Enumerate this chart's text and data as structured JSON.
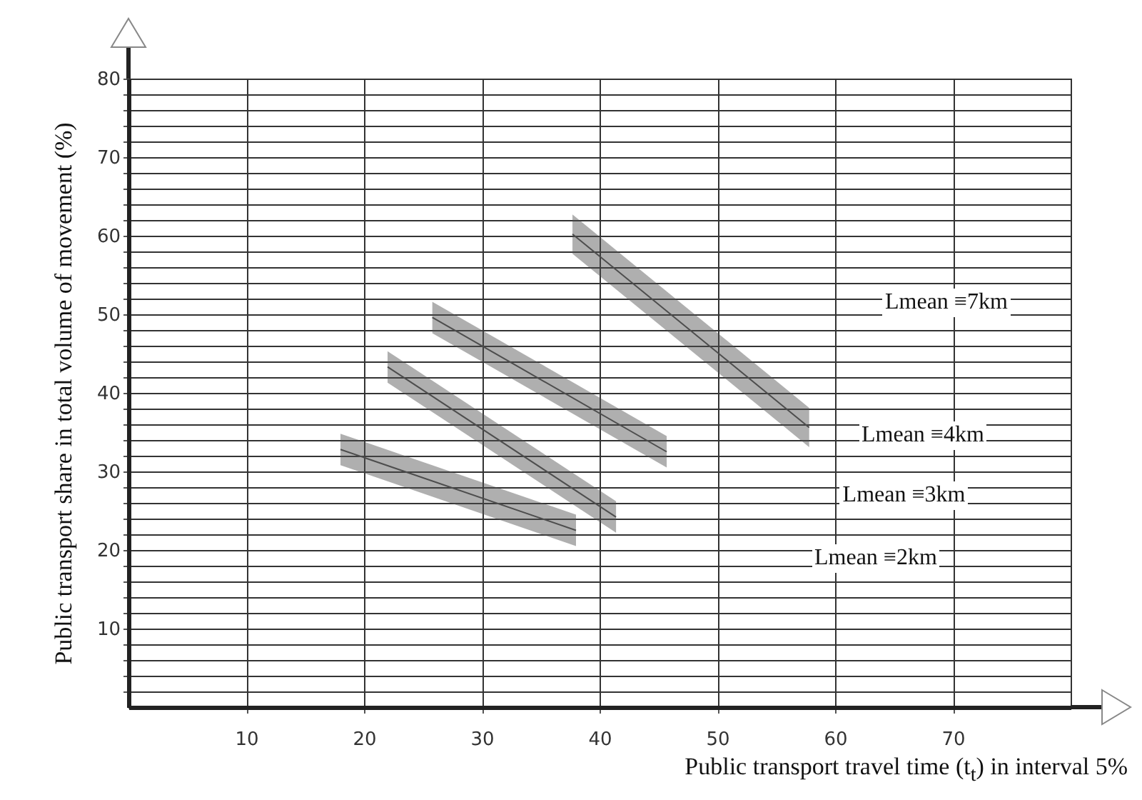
{
  "chart_data": {
    "type": "line",
    "xlabel": "Public transport travel time (t$_{t}$) in interval  5%",
    "ylabel": "Public transport share in total volume of movement  (%)",
    "xlim": [
      0,
      80
    ],
    "ylim": [
      0,
      80
    ],
    "xticks": [
      10,
      20,
      30,
      40,
      50,
      60,
      70
    ],
    "yticks": [
      {
        "value": 2,
        "label": null
      },
      {
        "value": 4,
        "label": null
      },
      {
        "value": 6,
        "label": null
      },
      {
        "value": 8,
        "label": null
      },
      10,
      {
        "value": 12,
        "label": null
      },
      {
        "value": 14,
        "label": null
      },
      {
        "value": 16,
        "label": null
      },
      {
        "value": 18,
        "label": null
      },
      20,
      {
        "value": 22,
        "label": null
      },
      {
        "value": 24,
        "label": null
      },
      {
        "value": 26,
        "label": null
      },
      {
        "value": 28,
        "label": null
      },
      30,
      {
        "value": 32,
        "label": null
      },
      {
        "value": 34,
        "label": null
      },
      {
        "value": 36,
        "label": null
      },
      {
        "value": 38,
        "label": null
      },
      40,
      {
        "value": 42,
        "label": null
      },
      {
        "value": 44,
        "label": null
      },
      {
        "value": 46,
        "label": null
      },
      {
        "value": 48,
        "label": null
      },
      50,
      {
        "value": 52,
        "label": null
      },
      {
        "value": 54,
        "label": null
      },
      {
        "value": 56,
        "label": null
      },
      {
        "value": 58,
        "label": null
      },
      60,
      {
        "value": 62,
        "label": null
      },
      {
        "value": 64,
        "label": null
      },
      {
        "value": 66,
        "label": null
      },
      {
        "value": 68,
        "label": null
      },
      70,
      {
        "value": 72,
        "label": null
      },
      {
        "value": 74,
        "label": null
      },
      {
        "value": 76,
        "label": null
      },
      {
        "value": 78,
        "label": null
      },
      80
    ],
    "grid": true,
    "series": [
      {
        "color": "#4d4d4d",
        "x": [
          18,
          38
        ],
        "values": [
          32.8,
          22.5
        ],
        "lower": [
          30.8,
          20.5
        ],
        "upper": [
          34.8,
          24.5
        ]
      },
      {
        "color": "#4d4d4d",
        "x": [
          22,
          41.4
        ],
        "values": [
          43.3,
          24.2
        ],
        "lower": [
          41.3,
          22.2
        ],
        "upper": [
          45.3,
          26.2
        ]
      },
      {
        "color": "#4d4d4d",
        "x": [
          25.8,
          45.7
        ],
        "values": [
          49.6,
          32.5
        ],
        "lower": [
          47.6,
          30.5
        ],
        "upper": [
          51.6,
          34.5
        ]
      },
      {
        "color": "#4d4d4d",
        "x": [
          37.7,
          57.8
        ],
        "values": [
          60.2,
          35.6
        ],
        "lower": [
          57.7,
          33.1
        ],
        "upper": [
          62.7,
          38.1
        ]
      }
    ],
    "annotations": [
      "Lmean ≡7km",
      "Lmean ≡4km",
      "Lmean ≡3km",
      "Lmean ≡2km"
    ]
  }
}
